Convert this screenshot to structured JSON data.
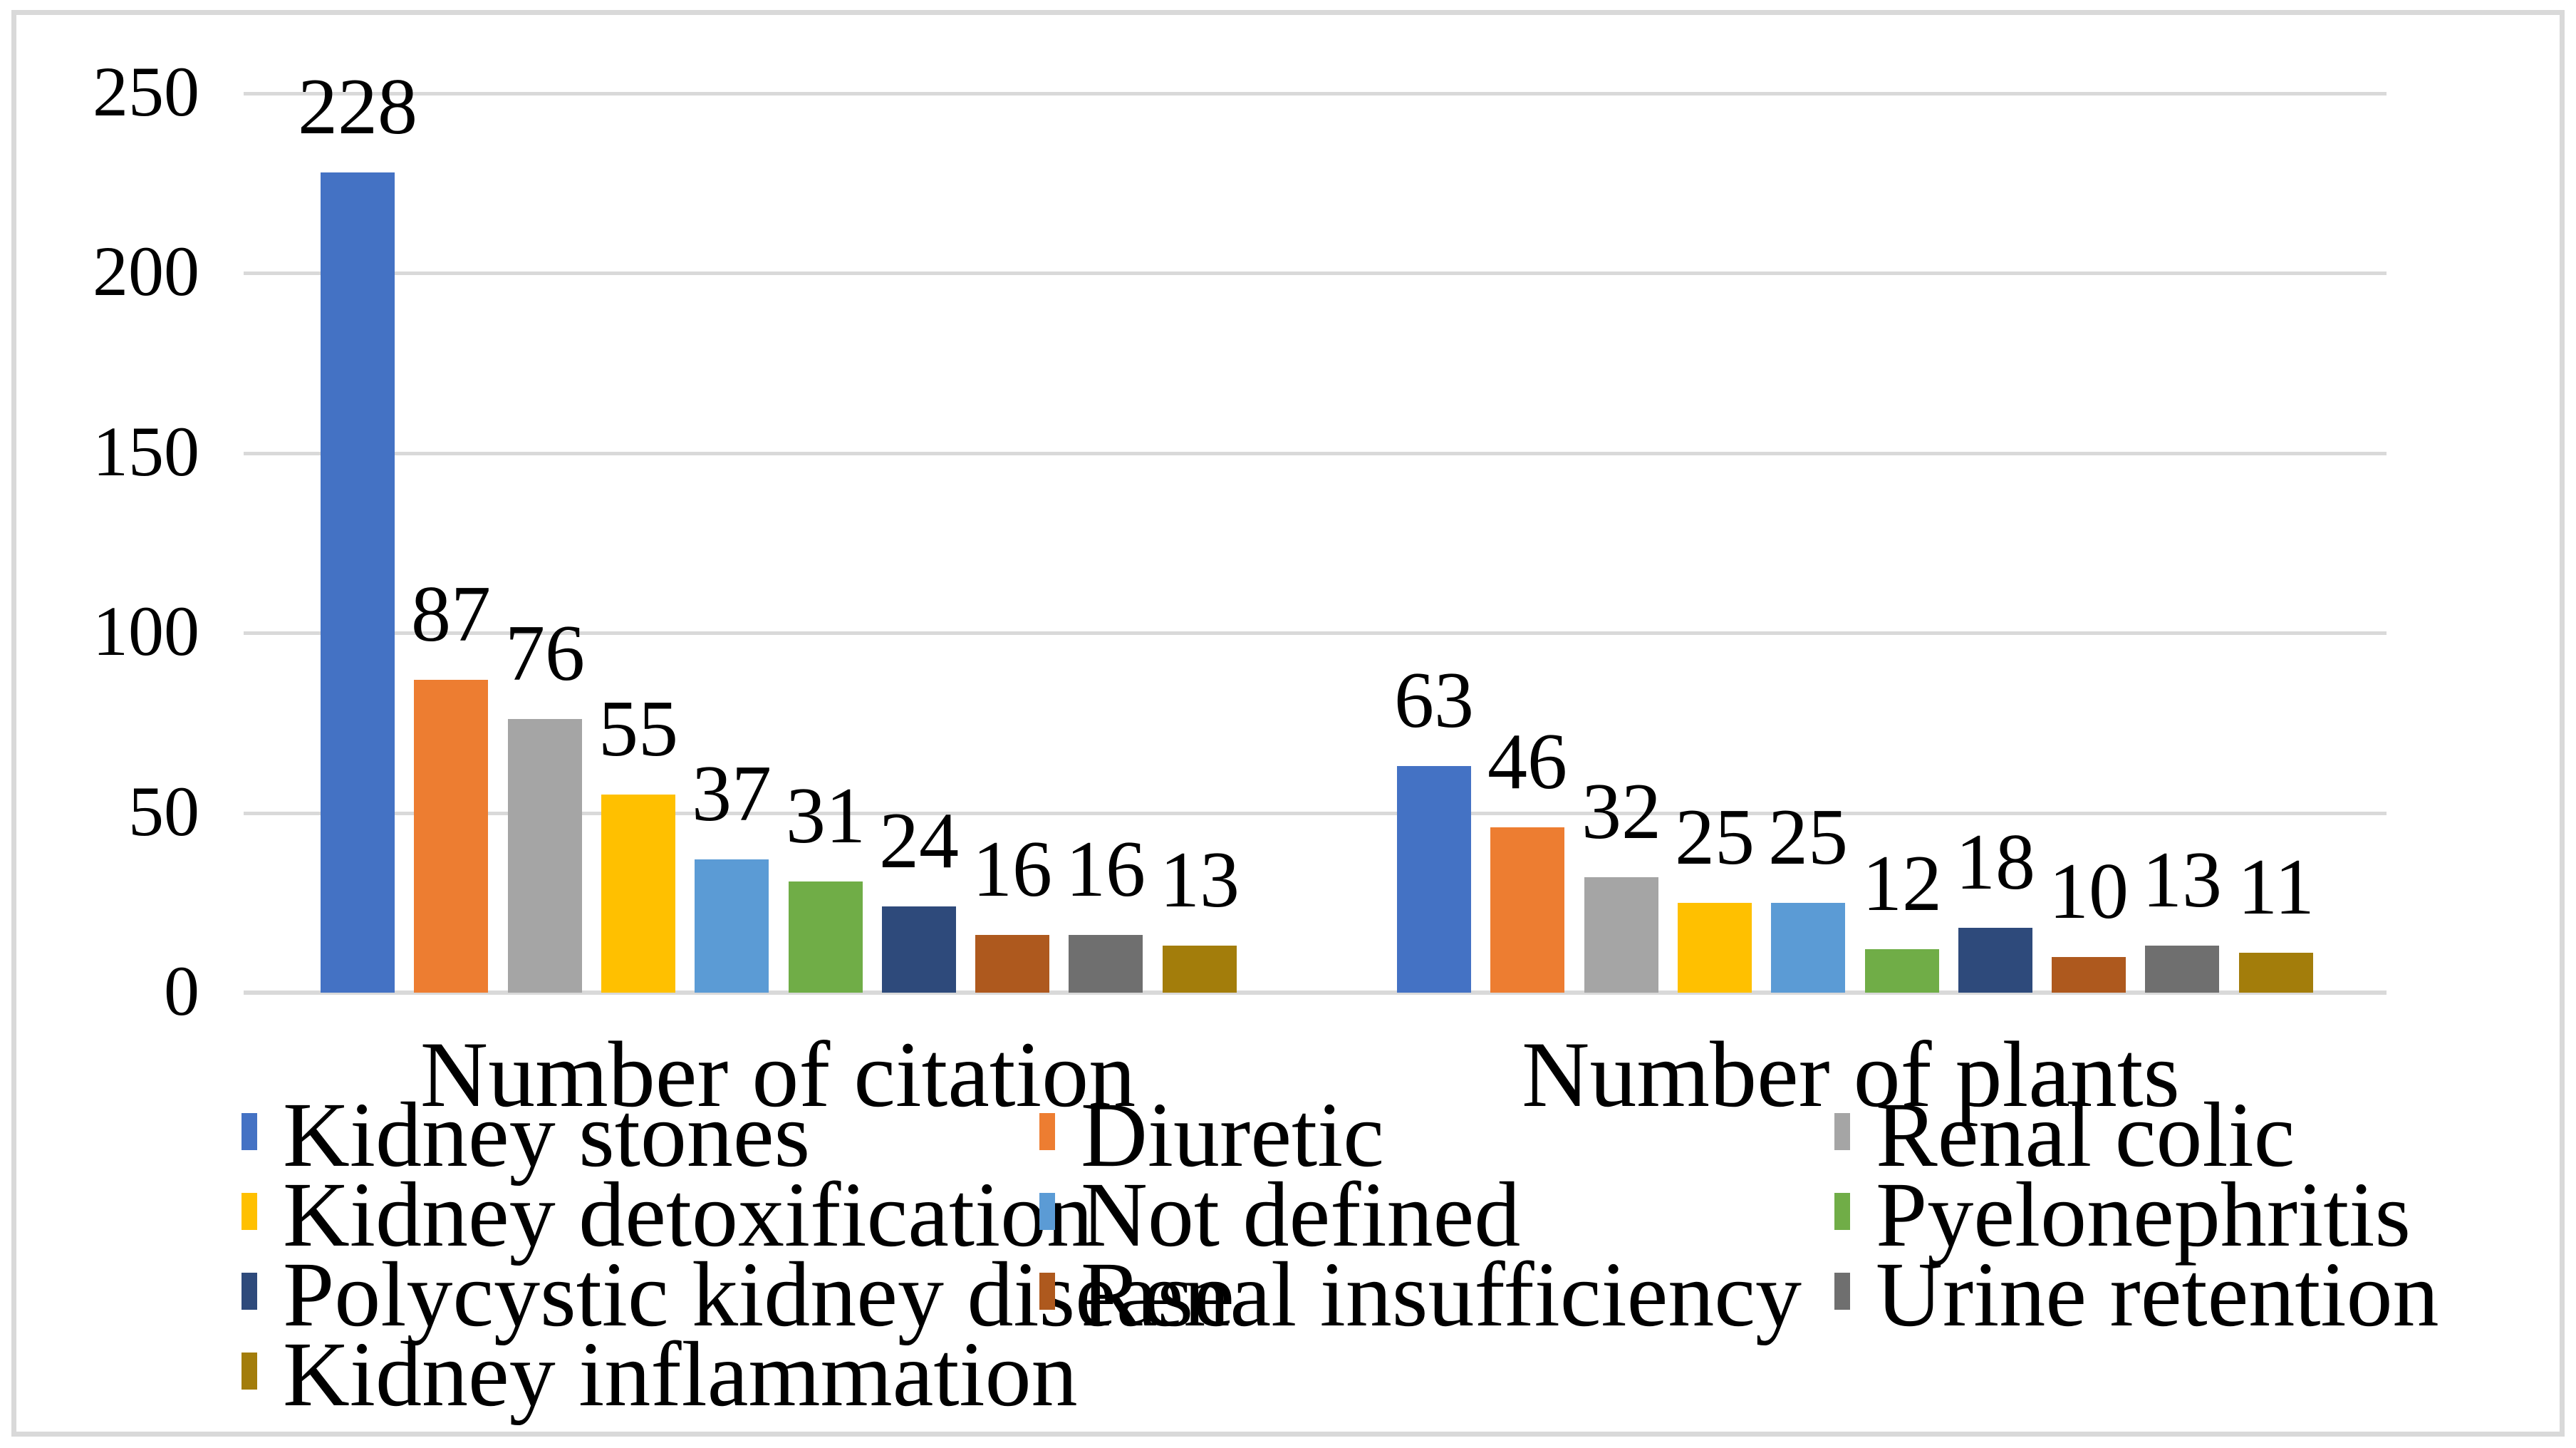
{
  "chart_data": {
    "type": "bar",
    "title": "",
    "categories": [
      "Number of citation",
      "Number of plants"
    ],
    "series": [
      {
        "name": "Kidney stones",
        "color": "#4472C4",
        "values": [
          228,
          63
        ]
      },
      {
        "name": "Diuretic",
        "color": "#ED7D31",
        "values": [
          87,
          46
        ]
      },
      {
        "name": "Renal colic",
        "color": "#A5A5A5",
        "values": [
          76,
          32
        ]
      },
      {
        "name": "Kidney detoxification",
        "color": "#FFC000",
        "values": [
          55,
          25
        ]
      },
      {
        "name": "Not defined",
        "color": "#5B9BD5",
        "values": [
          37,
          25
        ]
      },
      {
        "name": "Pyelonephritis",
        "color": "#70AD47",
        "values": [
          31,
          12
        ]
      },
      {
        "name": "Polycystic kidney disease",
        "color": "#2E4A7B",
        "values": [
          24,
          18
        ]
      },
      {
        "name": "Renal insufficiency",
        "color": "#AE591E",
        "values": [
          16,
          10
        ]
      },
      {
        "name": "Urine retention",
        "color": "#6F6F6F",
        "values": [
          16,
          13
        ]
      },
      {
        "name": "Kidney inflammation",
        "color": "#A37D0B",
        "values": [
          13,
          11
        ]
      }
    ],
    "y_axis": {
      "min": 0,
      "max": 250,
      "step": 50,
      "ticks": [
        "0",
        "50",
        "100",
        "150",
        "200",
        "250"
      ]
    },
    "grid": true,
    "gridline_color": "#D9D9D9",
    "axis_line_color": "#D9D9D9",
    "frame_border_color": "#D9D9D9",
    "legend_position": "bottom",
    "legend_columns": 3
  }
}
